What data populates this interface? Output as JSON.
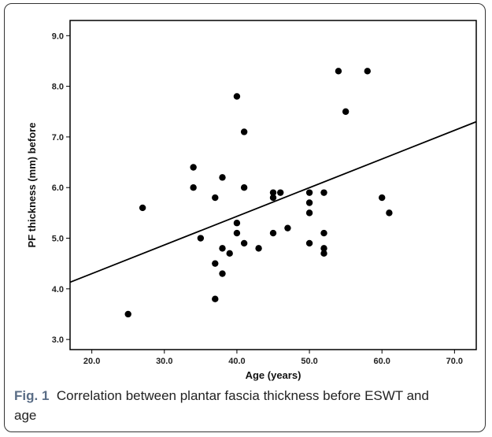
{
  "chart_data": {
    "type": "scatter",
    "xlabel": "Age (years)",
    "ylabel": "PF thickness (mm) before",
    "xlim": [
      17,
      73
    ],
    "ylim": [
      2.8,
      9.3
    ],
    "xticks": [
      "20.0",
      "30.0",
      "40.0",
      "50.0",
      "60.0",
      "70.0"
    ],
    "yticks": [
      "3.0",
      "4.0",
      "5.0",
      "6.0",
      "7.0",
      "8.0",
      "9.0"
    ],
    "grid": false,
    "points": [
      {
        "x": 25,
        "y": 3.5
      },
      {
        "x": 27,
        "y": 5.6
      },
      {
        "x": 34,
        "y": 6.4
      },
      {
        "x": 34,
        "y": 6.0
      },
      {
        "x": 35,
        "y": 5.0
      },
      {
        "x": 37,
        "y": 5.8
      },
      {
        "x": 37,
        "y": 4.5
      },
      {
        "x": 37,
        "y": 3.8
      },
      {
        "x": 38,
        "y": 6.2
      },
      {
        "x": 38,
        "y": 4.8
      },
      {
        "x": 38,
        "y": 4.3
      },
      {
        "x": 39,
        "y": 4.7
      },
      {
        "x": 40,
        "y": 7.8
      },
      {
        "x": 40,
        "y": 5.3
      },
      {
        "x": 40,
        "y": 5.1
      },
      {
        "x": 41,
        "y": 7.1
      },
      {
        "x": 41,
        "y": 6.0
      },
      {
        "x": 41,
        "y": 4.9
      },
      {
        "x": 43,
        "y": 4.8
      },
      {
        "x": 45,
        "y": 5.9
      },
      {
        "x": 45,
        "y": 5.8
      },
      {
        "x": 45,
        "y": 5.1
      },
      {
        "x": 46,
        "y": 5.9
      },
      {
        "x": 47,
        "y": 5.2
      },
      {
        "x": 50,
        "y": 5.9
      },
      {
        "x": 50,
        "y": 5.7
      },
      {
        "x": 50,
        "y": 5.5
      },
      {
        "x": 50,
        "y": 4.9
      },
      {
        "x": 52,
        "y": 5.9
      },
      {
        "x": 52,
        "y": 5.1
      },
      {
        "x": 52,
        "y": 4.8
      },
      {
        "x": 52,
        "y": 4.7
      },
      {
        "x": 54,
        "y": 8.3
      },
      {
        "x": 55,
        "y": 7.5
      },
      {
        "x": 58,
        "y": 8.3
      },
      {
        "x": 60,
        "y": 5.8
      },
      {
        "x": 61,
        "y": 5.5
      }
    ],
    "fit_line": {
      "x": [
        17,
        73
      ],
      "y": [
        4.13,
        7.3
      ]
    },
    "colors": {
      "point": "#000000",
      "line": "#000000",
      "axis": "#000000"
    }
  },
  "caption": {
    "label": "Fig. 1",
    "text": "Correlation between plantar fascia thickness before ESWT and age"
  }
}
